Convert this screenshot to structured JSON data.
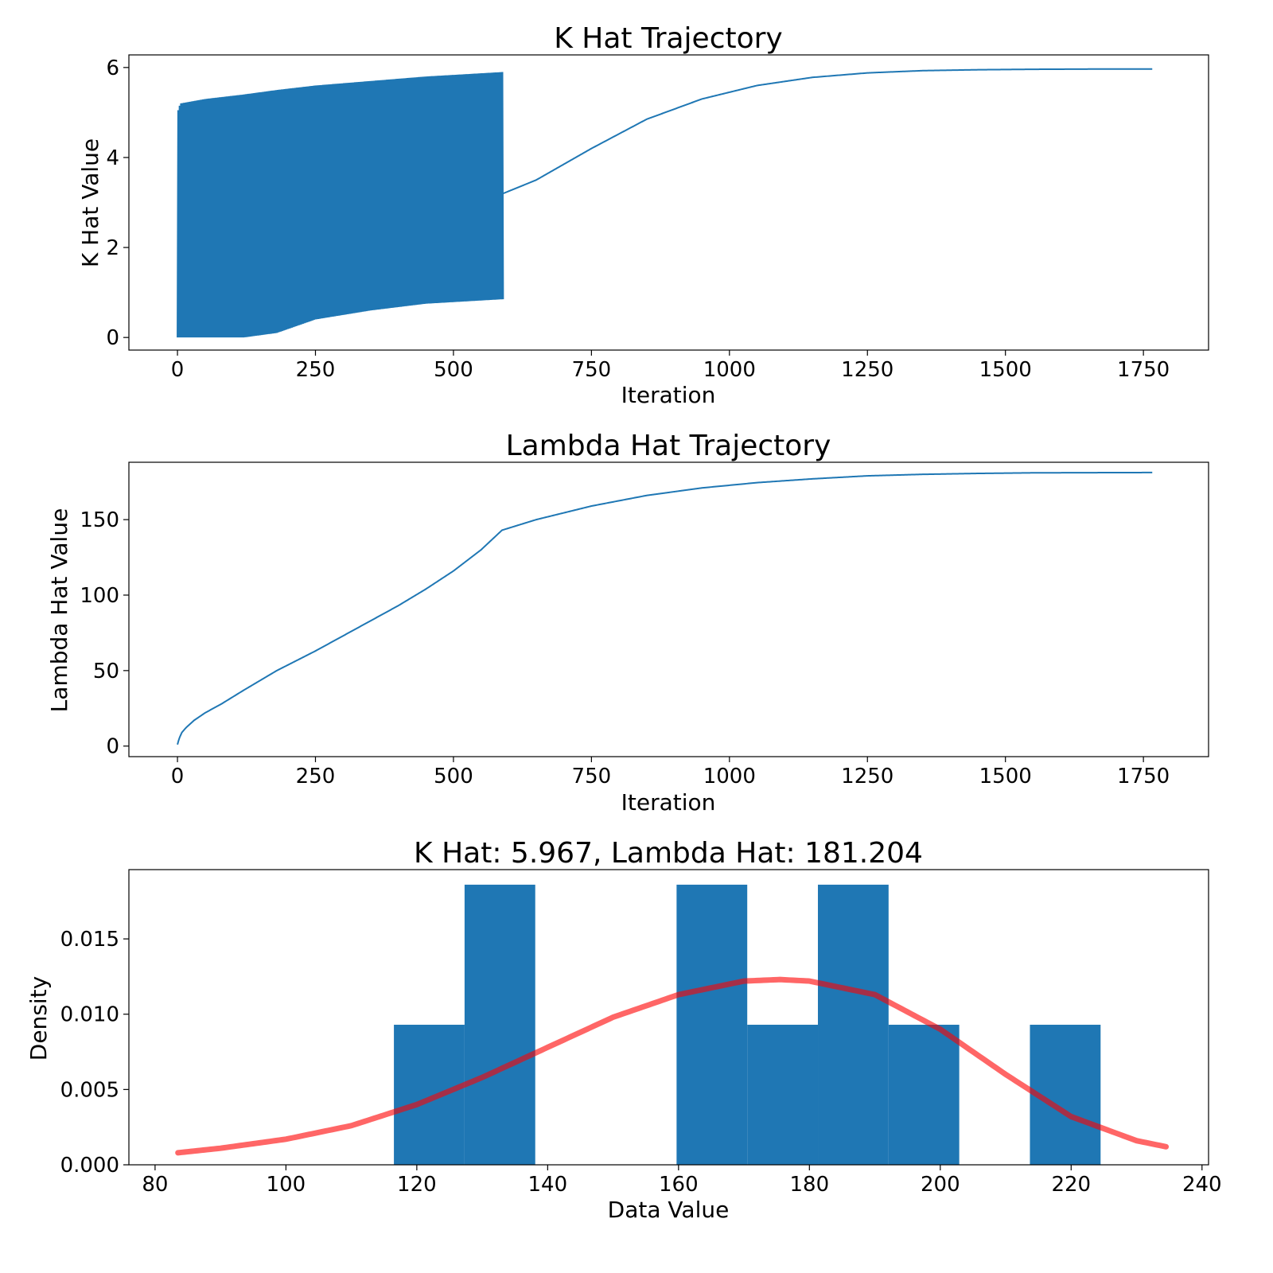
{
  "colors": {
    "line": "#1f77b4",
    "bars": "#1f77b4",
    "pdf": "#ff0000",
    "axes": "#000000"
  },
  "chart_data": [
    {
      "type": "line",
      "title": "K Hat Trajectory",
      "xlabel": "Iteration",
      "ylabel": "K Hat Value",
      "xlim": [
        -88,
        1868
      ],
      "ylim": [
        -0.28,
        6.28
      ],
      "xticks": [
        0,
        250,
        500,
        750,
        1000,
        1250,
        1500,
        1750
      ],
      "xtick_labels": [
        "0",
        "250",
        "500",
        "750",
        "1000",
        "1250",
        "1500",
        "1750"
      ],
      "yticks": [
        0,
        2,
        4,
        6
      ],
      "ytick_labels": [
        "0",
        "2",
        "4",
        "6"
      ],
      "grid": false,
      "series": [
        {
          "oscillation": {
            "x_range": [
              0,
              590
            ],
            "lower_envelope": [
              [
                0,
                0.0
              ],
              [
                120,
                0.0
              ],
              [
                180,
                0.1
              ],
              [
                250,
                0.4
              ],
              [
                350,
                0.6
              ],
              [
                450,
                0.75
              ],
              [
                590,
                0.85
              ]
            ],
            "upper_envelope": [
              [
                0,
                5.0
              ],
              [
                5,
                5.2
              ],
              [
                50,
                5.3
              ],
              [
                120,
                5.4
              ],
              [
                180,
                5.5
              ],
              [
                250,
                5.6
              ],
              [
                350,
                5.7
              ],
              [
                450,
                5.8
              ],
              [
                590,
                5.9
              ]
            ]
          },
          "points": [
            [
              590,
              3.2
            ],
            [
              650,
              3.5
            ],
            [
              750,
              4.2
            ],
            [
              850,
              4.85
            ],
            [
              950,
              5.3
            ],
            [
              1050,
              5.6
            ],
            [
              1150,
              5.78
            ],
            [
              1250,
              5.88
            ],
            [
              1350,
              5.93
            ],
            [
              1450,
              5.95
            ],
            [
              1550,
              5.96
            ],
            [
              1650,
              5.965
            ],
            [
              1767,
              5.967
            ]
          ]
        }
      ]
    },
    {
      "type": "line",
      "title": "Lambda Hat Trajectory",
      "xlabel": "Iteration",
      "ylabel": "Lambda Hat Value",
      "xlim": [
        -88,
        1868
      ],
      "ylim": [
        -7,
        188
      ],
      "xticks": [
        0,
        250,
        500,
        750,
        1000,
        1250,
        1500,
        1750
      ],
      "xtick_labels": [
        "0",
        "250",
        "500",
        "750",
        "1000",
        "1250",
        "1500",
        "1750"
      ],
      "yticks": [
        0,
        50,
        100,
        150
      ],
      "ytick_labels": [
        "0",
        "50",
        "100",
        "150"
      ],
      "grid": false,
      "series": [
        {
          "points": [
            [
              0,
              1
            ],
            [
              3,
              5
            ],
            [
              8,
              9
            ],
            [
              15,
              12
            ],
            [
              30,
              17
            ],
            [
              50,
              22
            ],
            [
              80,
              28
            ],
            [
              120,
              37
            ],
            [
              180,
              50
            ],
            [
              250,
              63
            ],
            [
              300,
              73
            ],
            [
              350,
              83
            ],
            [
              400,
              93
            ],
            [
              450,
              104
            ],
            [
              500,
              116
            ],
            [
              550,
              130
            ],
            [
              588,
              143
            ],
            [
              650,
              150
            ],
            [
              750,
              159
            ],
            [
              850,
              166
            ],
            [
              950,
              171
            ],
            [
              1050,
              174.5
            ],
            [
              1150,
              177
            ],
            [
              1250,
              179
            ],
            [
              1350,
              180
            ],
            [
              1450,
              180.6
            ],
            [
              1550,
              181
            ],
            [
              1650,
              181.1
            ],
            [
              1767,
              181.2
            ]
          ]
        }
      ]
    },
    {
      "type": "bar",
      "title": "K Hat: 5.967, Lambda Hat: 181.204",
      "xlabel": "Data Value",
      "ylabel": "Density",
      "xlim": [
        76,
        241
      ],
      "ylim": [
        0,
        0.0196
      ],
      "xticks": [
        80,
        100,
        120,
        140,
        160,
        180,
        200,
        220,
        240
      ],
      "xtick_labels": [
        "80",
        "100",
        "120",
        "140",
        "160",
        "180",
        "200",
        "220",
        "240"
      ],
      "yticks": [
        0,
        0.005,
        0.01,
        0.015
      ],
      "ytick_labels": [
        "0.000",
        "0.005",
        "0.010",
        "0.015"
      ],
      "grid": false,
      "bins": [
        {
          "left": 116.5,
          "right": 127.3,
          "value": 0.0093
        },
        {
          "left": 127.3,
          "right": 138.1,
          "value": 0.0186
        },
        {
          "left": 138.1,
          "right": 148.9,
          "value": 0.0
        },
        {
          "left": 148.9,
          "right": 159.7,
          "value": 0.0
        },
        {
          "left": 159.7,
          "right": 170.5,
          "value": 0.0186
        },
        {
          "left": 170.5,
          "right": 181.3,
          "value": 0.0093
        },
        {
          "left": 181.3,
          "right": 192.1,
          "value": 0.0186
        },
        {
          "left": 192.1,
          "right": 202.9,
          "value": 0.0093
        },
        {
          "left": 202.9,
          "right": 213.7,
          "value": 0.0
        },
        {
          "left": 213.7,
          "right": 224.5,
          "value": 0.0093
        }
      ],
      "series": [
        {
          "type": "line",
          "points": [
            [
              83.5,
              0.0008
            ],
            [
              90,
              0.0011
            ],
            [
              100,
              0.0017
            ],
            [
              110,
              0.0026
            ],
            [
              120,
              0.004
            ],
            [
              130,
              0.0058
            ],
            [
              140,
              0.0078
            ],
            [
              150,
              0.0098
            ],
            [
              160,
              0.0113
            ],
            [
              170,
              0.0122
            ],
            [
              175.5,
              0.0123
            ],
            [
              180,
              0.0122
            ],
            [
              190,
              0.0113
            ],
            [
              200,
              0.009
            ],
            [
              210,
              0.006
            ],
            [
              220,
              0.0032
            ],
            [
              230,
              0.0016
            ],
            [
              234.5,
              0.0012
            ]
          ]
        }
      ]
    }
  ]
}
